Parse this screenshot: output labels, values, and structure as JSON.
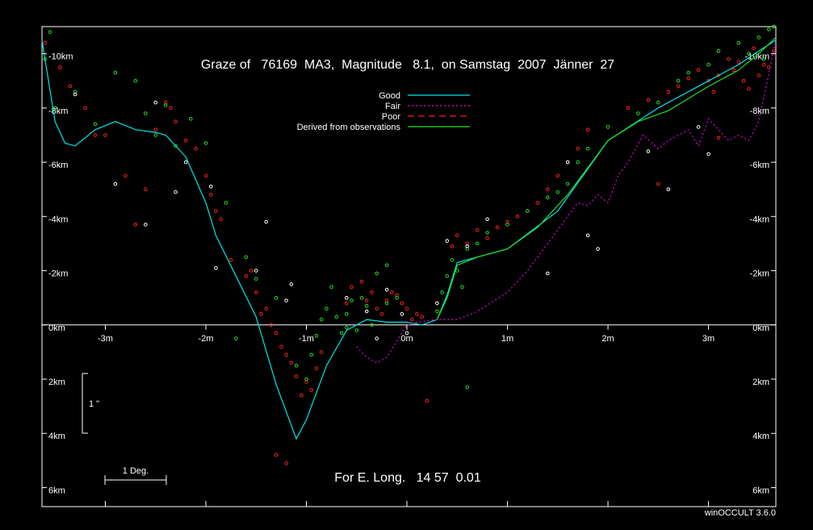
{
  "chart_data": {
    "type": "scatter",
    "title": "Graze of   76169  MA3,  Magnitude   8.1,  on Samstag  2007  Jänner  27",
    "subtitle": "For E. Long.   14 57  0.01",
    "software": "winOCCULT 3.6.0",
    "xlim": [
      -3.63,
      3.67
    ],
    "ylim": [
      -6.7,
      11.0
    ],
    "x_ticks": [
      {
        "value": -3,
        "label": "-3m"
      },
      {
        "value": -2,
        "label": "-2m"
      },
      {
        "value": -1,
        "label": "-1m"
      },
      {
        "value": 0,
        "label": "0m"
      },
      {
        "value": 1,
        "label": "1m"
      },
      {
        "value": 2,
        "label": "2m"
      },
      {
        "value": 3,
        "label": "3m"
      }
    ],
    "y_ticks": [
      {
        "value": 10,
        "label": "-10km"
      },
      {
        "value": 8,
        "label": "-8km"
      },
      {
        "value": 6,
        "label": "-6km"
      },
      {
        "value": 4,
        "label": "-4km"
      },
      {
        "value": 2,
        "label": "-2km"
      },
      {
        "value": 0,
        "label": "0km"
      },
      {
        "value": -2,
        "label": "2km"
      },
      {
        "value": -4,
        "label": "4km"
      },
      {
        "value": -6,
        "label": "6km"
      }
    ],
    "colors": {
      "good": "#00e5e5",
      "fair": "#e000e0",
      "poor": "#ff2020",
      "derived": "#20e020",
      "white_points": "#ffffff",
      "axes": "#ffffff"
    },
    "legend": {
      "placement": "top-center",
      "entries": [
        {
          "name": "Good",
          "style": "solid",
          "color": "#00e5e5"
        },
        {
          "name": "Fair",
          "style": "dotted",
          "color": "#e000e0"
        },
        {
          "name": "Poor",
          "style": "dashed",
          "color": "#ff2020"
        },
        {
          "name": "Derived from observations",
          "style": "solid",
          "color": "#20e020"
        }
      ]
    },
    "scale_bars": [
      {
        "label": "1 \"",
        "orientation": "vertical"
      },
      {
        "label": "1 Deg.",
        "orientation": "horizontal"
      }
    ],
    "series": [
      {
        "name": "Good",
        "x": [
          -3.63,
          -3.5,
          -3.4,
          -3.3,
          -3.1,
          -2.9,
          -2.7,
          -2.5,
          -2.4,
          -2.2,
          -2.0,
          -1.9,
          -1.7,
          -1.5,
          -1.3,
          -1.1,
          -1.0,
          -0.8,
          -0.6,
          -0.4,
          -0.2,
          0.0,
          0.15,
          0.3,
          0.4,
          0.5,
          0.7,
          1.0,
          1.5,
          2.0,
          2.5,
          3.0,
          3.3,
          3.5,
          3.67
        ],
        "y": [
          10.5,
          7.5,
          6.7,
          6.6,
          7.2,
          7.5,
          7.2,
          7.1,
          7.0,
          6.2,
          4.5,
          3.3,
          1.8,
          0.3,
          -2.2,
          -4.2,
          -3.5,
          -1.5,
          -0.2,
          0.2,
          0.1,
          0.1,
          0.0,
          0.2,
          1.1,
          2.3,
          2.5,
          2.8,
          4.2,
          6.8,
          8.0,
          9.0,
          9.6,
          10.1,
          10.5
        ]
      },
      {
        "name": "Fair",
        "x": [
          -0.5,
          -0.4,
          -0.3,
          -0.2,
          -0.1,
          0.0,
          0.1,
          0.3,
          0.5,
          0.7,
          1.0,
          1.2,
          1.4,
          1.6,
          1.7,
          1.8,
          1.9,
          2.0,
          2.1,
          2.2,
          2.35,
          2.5,
          2.6,
          2.8,
          2.9,
          3.0,
          3.2,
          3.3,
          3.4,
          3.5,
          3.67
        ],
        "y": [
          -0.8,
          -1.2,
          -1.4,
          -1.2,
          -0.6,
          0.0,
          0.1,
          0.2,
          0.2,
          0.5,
          1.2,
          2.0,
          3.0,
          4.0,
          4.5,
          4.4,
          4.8,
          4.5,
          5.5,
          6.0,
          7.0,
          6.5,
          6.8,
          7.2,
          6.6,
          7.6,
          6.8,
          7.0,
          6.8,
          7.5,
          10.5
        ]
      },
      {
        "name": "Derived from observations",
        "x": [
          0.3,
          0.4,
          0.5,
          0.7,
          1.0,
          1.3,
          1.6,
          2.0,
          2.3,
          2.6,
          3.0,
          3.3,
          3.5,
          3.67
        ],
        "y": [
          0.2,
          1.0,
          2.2,
          2.5,
          2.8,
          3.6,
          4.8,
          6.8,
          7.5,
          7.9,
          8.8,
          9.4,
          10.0,
          10.6
        ]
      }
    ],
    "observations": [
      {
        "name": "red",
        "color": "#ff2020",
        "x": [
          -3.6,
          -3.45,
          -3.35,
          -3.2,
          -3.0,
          -2.8,
          -2.6,
          -2.5,
          -2.4,
          -2.35,
          -2.3,
          -2.2,
          -2.1,
          -2.0,
          -1.95,
          -1.9,
          -1.85,
          -1.75,
          -1.6,
          -1.55,
          -1.5,
          -1.45,
          -1.4,
          -1.35,
          -1.3,
          -1.25,
          -1.2,
          -1.15,
          -1.1,
          -1.05,
          -1.0,
          -0.95,
          -0.9,
          -0.85,
          -0.6,
          -0.55,
          -0.45,
          -0.4,
          -0.35,
          -0.3,
          -0.25,
          -0.2,
          -0.15,
          -0.1,
          -0.05,
          0.0,
          0.05,
          0.1,
          0.15,
          0.45,
          0.5,
          0.6,
          0.7,
          0.8,
          0.9,
          1.0,
          1.1,
          1.2,
          1.3,
          1.4,
          1.5,
          1.6,
          1.7,
          1.8,
          2.2,
          2.4,
          2.6,
          2.7,
          2.8,
          2.9,
          3.0,
          3.05,
          3.1,
          3.2,
          3.25,
          3.3,
          3.35,
          3.4,
          3.45,
          3.5,
          3.55,
          3.6,
          3.65,
          -2.7,
          -3.1,
          -1.2,
          -1.3,
          0.2,
          2.5,
          3.1
        ],
        "y": [
          10.4,
          9.5,
          8.8,
          8.0,
          7.0,
          5.5,
          5.0,
          7.2,
          8.2,
          8.0,
          7.5,
          6.8,
          6.5,
          5.5,
          4.8,
          4.2,
          3.9,
          2.4,
          1.8,
          2.0,
          1.2,
          0.4,
          0.6,
          0.0,
          -0.3,
          -0.8,
          -1.1,
          -1.4,
          -1.9,
          -2.6,
          -2.1,
          -2.4,
          -1.6,
          -1.0,
          0.8,
          1.4,
          1.6,
          0.9,
          1.2,
          0.6,
          0.4,
          0.9,
          1.2,
          1.1,
          0.8,
          0.6,
          0.2,
          0.4,
          0.3,
          2.9,
          3.3,
          3.0,
          3.5,
          3.2,
          3.6,
          3.8,
          4.0,
          4.2,
          4.5,
          5.0,
          5.5,
          6.0,
          6.5,
          7.2,
          8.0,
          8.3,
          8.6,
          8.8,
          9.1,
          9.4,
          9.0,
          8.6,
          9.2,
          9.8,
          9.4,
          9.7,
          9.0,
          8.7,
          10.2,
          9.2,
          9.6,
          9.5,
          10.1,
          3.7,
          7.0,
          -5.1,
          -4.8,
          -2.8,
          5.2,
          6.9
        ]
      },
      {
        "name": "green",
        "color": "#20e020",
        "x": [
          -3.6,
          -3.55,
          -3.5,
          -3.3,
          -3.1,
          -2.9,
          -2.7,
          -2.6,
          -2.5,
          -2.4,
          -2.3,
          -2.15,
          -2.0,
          -1.8,
          -1.6,
          -1.3,
          -1.1,
          -1.0,
          -0.95,
          -0.9,
          -0.85,
          -0.8,
          -0.75,
          -0.7,
          -0.65,
          -0.6,
          -0.55,
          -0.5,
          -0.45,
          -0.4,
          -0.35,
          -0.3,
          -0.2,
          -0.1,
          0.3,
          0.35,
          0.4,
          0.45,
          0.5,
          0.55,
          0.6,
          0.7,
          0.8,
          1.0,
          1.2,
          1.4,
          1.5,
          1.6,
          1.7,
          1.8,
          2.0,
          2.3,
          2.5,
          2.7,
          2.8,
          3.0,
          3.1,
          3.3,
          3.4,
          3.5,
          3.55,
          3.6,
          3.65,
          -0.2,
          -0.6,
          -1.5,
          0.6,
          -1.7
        ],
        "y": [
          9.8,
          10.8,
          8.0,
          8.6,
          7.4,
          9.3,
          9.0,
          7.8,
          7.0,
          8.1,
          6.6,
          7.6,
          6.7,
          4.5,
          2.5,
          1.0,
          -1.5,
          -2.0,
          -1.1,
          -0.4,
          0.2,
          0.6,
          1.4,
          0.3,
          -0.3,
          0.4,
          0.9,
          -0.2,
          1.0,
          0.7,
          0.0,
          1.9,
          2.2,
          1.0,
          0.5,
          1.2,
          1.8,
          2.4,
          2.0,
          1.4,
          2.8,
          3.0,
          3.4,
          3.7,
          4.2,
          4.7,
          4.9,
          5.2,
          6.0,
          6.5,
          7.3,
          7.8,
          8.2,
          9.0,
          9.3,
          9.6,
          10.1,
          10.4,
          10.0,
          10.6,
          9.8,
          10.9,
          11.0,
          0.8,
          -0.1,
          1.7,
          -2.3,
          -0.5
        ]
      },
      {
        "name": "white",
        "color": "#ffffff",
        "x": [
          -3.3,
          -2.9,
          -2.6,
          -2.3,
          -2.2,
          -1.95,
          -1.9,
          -1.5,
          -1.4,
          -1.15,
          -0.6,
          -0.4,
          -0.2,
          -0.05,
          0.0,
          0.3,
          0.4,
          0.6,
          0.8,
          1.4,
          1.6,
          1.8,
          1.9,
          2.4,
          2.6,
          2.9,
          3.0,
          -2.5,
          -1.2,
          -0.3
        ],
        "y": [
          8.5,
          5.2,
          3.7,
          4.9,
          6.0,
          5.1,
          2.1,
          2.0,
          3.8,
          1.5,
          1.0,
          0.5,
          1.3,
          0.4,
          -0.3,
          0.8,
          3.1,
          2.9,
          3.9,
          1.9,
          6.0,
          3.3,
          2.8,
          6.4,
          5.0,
          7.3,
          6.3,
          8.2,
          0.9,
          -0.5
        ]
      }
    ]
  }
}
